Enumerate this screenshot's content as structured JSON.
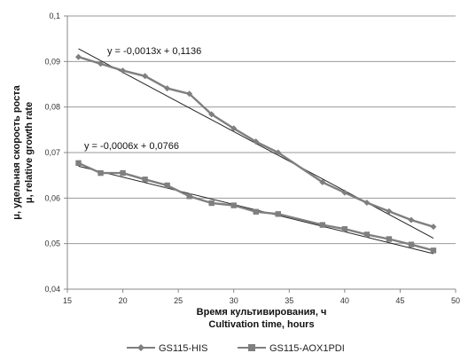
{
  "chart_data": {
    "type": "line",
    "xlabel_line1": "Время культивирования, ч",
    "xlabel_line2": "Cultivation time, hours",
    "ylabel_line1": "μ, удельная скорость роста",
    "ylabel_line2": "μ, relative growth rate",
    "xlim": [
      15,
      50
    ],
    "ylim": [
      0.04,
      0.1
    ],
    "x_ticks": [
      15,
      20,
      25,
      30,
      35,
      40,
      45,
      50
    ],
    "y_ticks": [
      0.04,
      0.05,
      0.06,
      0.07,
      0.08,
      0.09,
      0.1
    ],
    "x_tick_labels": [
      "15",
      "20",
      "25",
      "30",
      "35",
      "40",
      "45",
      "50"
    ],
    "y_tick_labels": [
      "0,04",
      "0,05",
      "0,06",
      "0,07",
      "0,08",
      "0,09",
      "0,1"
    ],
    "grid": "horizontal",
    "legend_position": "bottom",
    "series": [
      {
        "name": "GS115-HIS",
        "marker": "diamond",
        "color": "#7f7f7f",
        "x": [
          16,
          18,
          20,
          22,
          24,
          26,
          28,
          30,
          32,
          34,
          38,
          40,
          42,
          44,
          46,
          48
        ],
        "y": [
          0.091,
          0.0895,
          0.088,
          0.0868,
          0.0841,
          0.0829,
          0.0784,
          0.0753,
          0.0724,
          0.07,
          0.0635,
          0.0612,
          0.059,
          0.0571,
          0.0552,
          0.0537
        ],
        "trendline": {
          "equation": "y = -0,0013x + 0,1136",
          "slope": -0.0013,
          "intercept": 0.1136,
          "x_from": 16,
          "x_to": 48
        }
      },
      {
        "name": "GS115-AOX1PDI",
        "marker": "square",
        "color": "#7f7f7f",
        "x": [
          16,
          18,
          20,
          22,
          24,
          26,
          28,
          30,
          32,
          34,
          38,
          40,
          42,
          44,
          46,
          48
        ],
        "y": [
          0.0677,
          0.0655,
          0.0655,
          0.0641,
          0.0628,
          0.0604,
          0.0589,
          0.0584,
          0.057,
          0.0565,
          0.0541,
          0.0532,
          0.052,
          0.051,
          0.0498,
          0.0485
        ],
        "trendline": {
          "equation": "y = -0,0006x + 0,0766",
          "slope": -0.0006,
          "intercept": 0.0766,
          "x_from": 16,
          "x_to": 48
        }
      }
    ]
  }
}
